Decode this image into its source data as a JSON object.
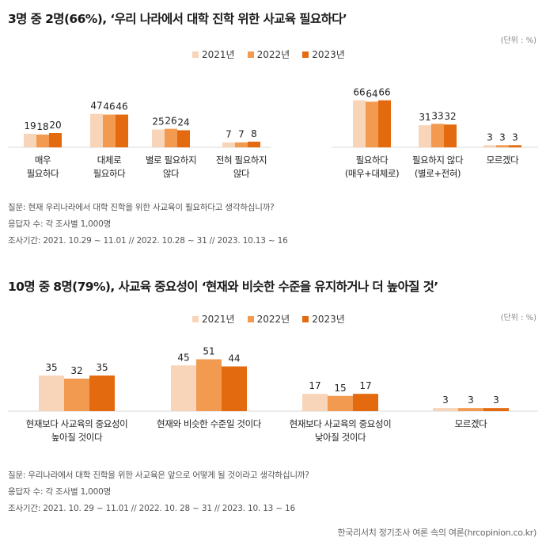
{
  "chart_data": [
    {
      "type": "bar",
      "title": "3명 중 2명(66%), ‘우리 나라에서 대학 진학 위한 사교육 필요하다’",
      "unit": "(단위 : %)",
      "categories": [
        "매우\n필요하다",
        "대체로\n필요하다",
        "별로 필요하지\n않다",
        "전혀 필요하지\n않다",
        "필요하다\n(매우+대체로)",
        "필요하지 않다\n(별로+전혀)",
        "모르겠다"
      ],
      "series": [
        {
          "name": "2021년",
          "values": [
            19,
            47,
            25,
            7,
            66,
            31,
            3
          ],
          "color": "#f8d5b8"
        },
        {
          "name": "2022년",
          "values": [
            18,
            46,
            26,
            7,
            64,
            33,
            3
          ],
          "color": "#f29a4f"
        },
        {
          "name": "2023년",
          "values": [
            20,
            46,
            24,
            8,
            66,
            32,
            3
          ],
          "color": "#e36a0f"
        }
      ],
      "ylim": [
        0,
        70
      ],
      "baseline_color": "#d9d9d9"
    },
    {
      "type": "bar",
      "title": "10명 중 8명(79%), 사교육 중요성이 ‘현재와 비슷한 수준을 유지하거나 더 높아질 것’",
      "unit": "(단위 : %)",
      "categories": [
        "현재보다 사교육의 중요성이\n높아질 것이다",
        "현재와 비슷한 수준일 것이다",
        "현재보다 사교육의 중요성이\n낮아질 것이다",
        "모르겠다"
      ],
      "series": [
        {
          "name": "2021년",
          "values": [
            35,
            45,
            17,
            3
          ],
          "color": "#f8d5b8"
        },
        {
          "name": "2022년",
          "values": [
            32,
            51,
            15,
            3
          ],
          "color": "#f29a4f"
        },
        {
          "name": "2023년",
          "values": [
            35,
            44,
            17,
            3
          ],
          "color": "#e36a0f"
        }
      ],
      "ylim": [
        0,
        60
      ],
      "baseline_color": "#d9d9d9"
    }
  ],
  "notes": [
    {
      "question": "질문: 현재 우리나라에서 대학 진학을 위한 사교육이 필요하다고 생각하십니까?",
      "respondents": "응답자 수: 각 조사별 1,000명",
      "period": "조사기간: 2021. 10.29 ~ 11.01 // 2022. 10.28 ~ 31 // 2023. 10.13 ~ 16"
    },
    {
      "question": "질문: 우리나라에서 대학 진학을 위한 사교육은 앞으로 어떻게 될 것이라고 생각하십니까?",
      "respondents": "응답자 수: 각 조사별 1,000명",
      "period": "조사기간: 2021. 10. 29 ~ 11.01 // 2022. 10. 28 ~ 31 // 2023. 10. 13 ~ 16"
    }
  ],
  "source": "한국리서치 정기조사 여론 속의 여론(hrcopinion.co.kr)"
}
